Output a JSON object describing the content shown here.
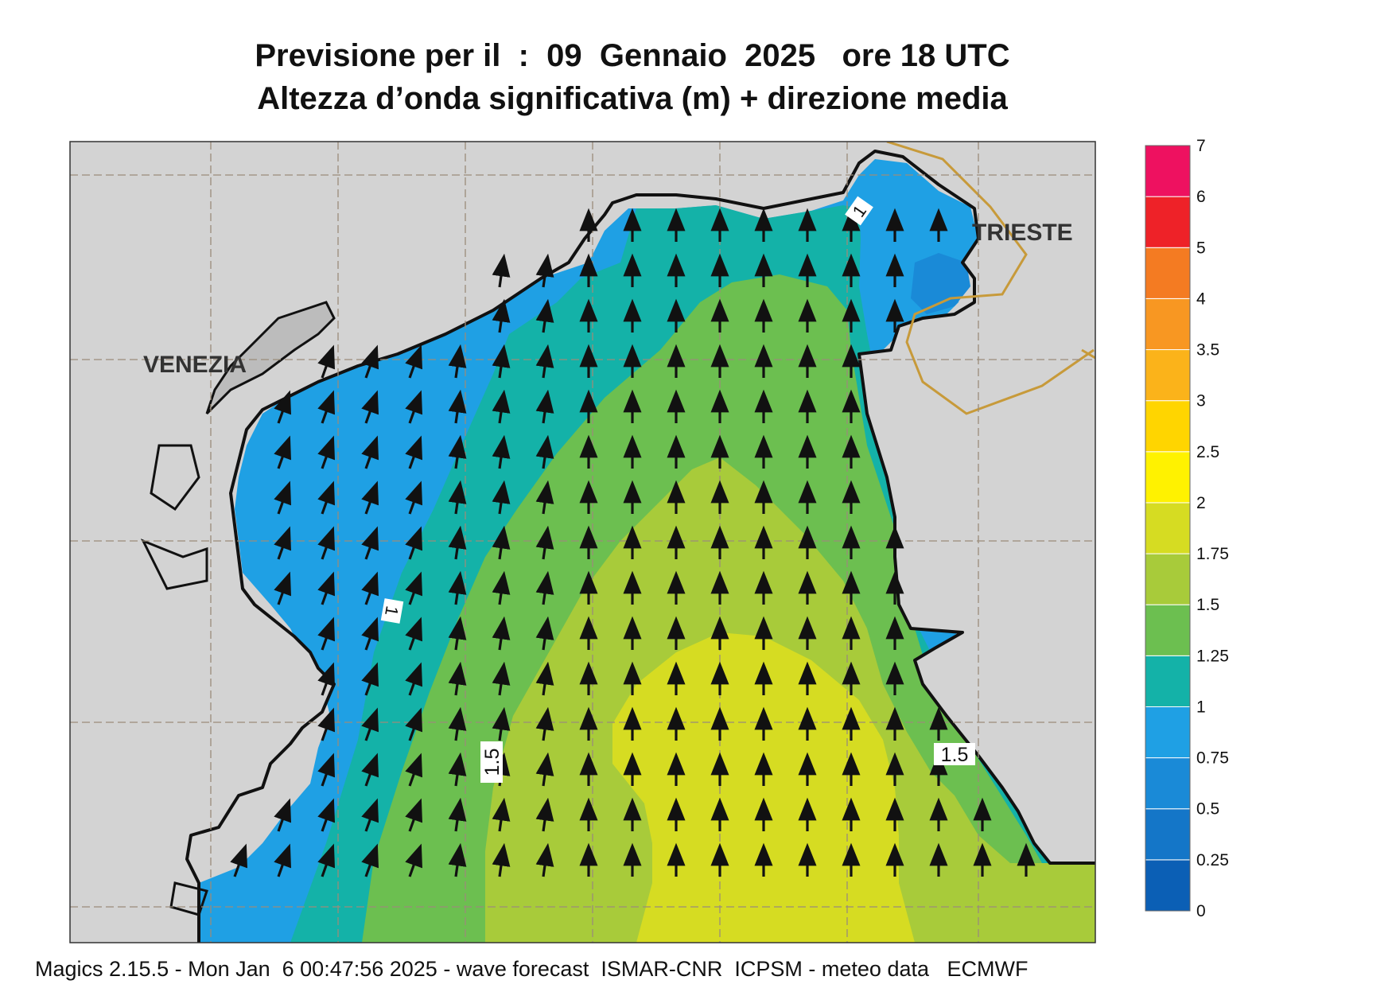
{
  "title_line1": "Previsione per il  :  09  Gennaio  2025   ore 18 UTC",
  "title_line2": "Altezza d’onda significativa (m) + direzione media",
  "footer": "Magics 2.15.5 - Mon Jan  6 00:47:56 2025 - wave forecast  ISMAR-CNR  ICPSM - meteo data   ECMWF",
  "places": {
    "venezia": "VENEZIA",
    "trieste": "TRIESTE"
  },
  "contour_labels": {
    "left_one": "1",
    "top_one": "1",
    "left_onefive": "1.5",
    "right_onefive": "1.5"
  },
  "colorbar": {
    "ticks": [
      "0",
      "0.25",
      "0.5",
      "0.75",
      "1",
      "1.25",
      "1.5",
      "1.75",
      "2",
      "2.5",
      "3",
      "3.5",
      "4",
      "5",
      "6",
      "7"
    ],
    "colors": [
      "#0b5fb5",
      "#1476c8",
      "#1a8ad7",
      "#1fa0e4",
      "#14b2a8",
      "#6cbf50",
      "#a8cb3a",
      "#d6dc22",
      "#fff200",
      "#ffd500",
      "#fbb31a",
      "#f89722",
      "#f47b22",
      "#ee2228",
      "#ee1160"
    ]
  },
  "colors": {
    "land": "#d3d3d3",
    "coast": "#111111",
    "border": "#c79a3a",
    "grid": "#9a8c7a"
  },
  "wave_direction": "N to NNW",
  "significant_wave_height_max_m": "1.75–2"
}
